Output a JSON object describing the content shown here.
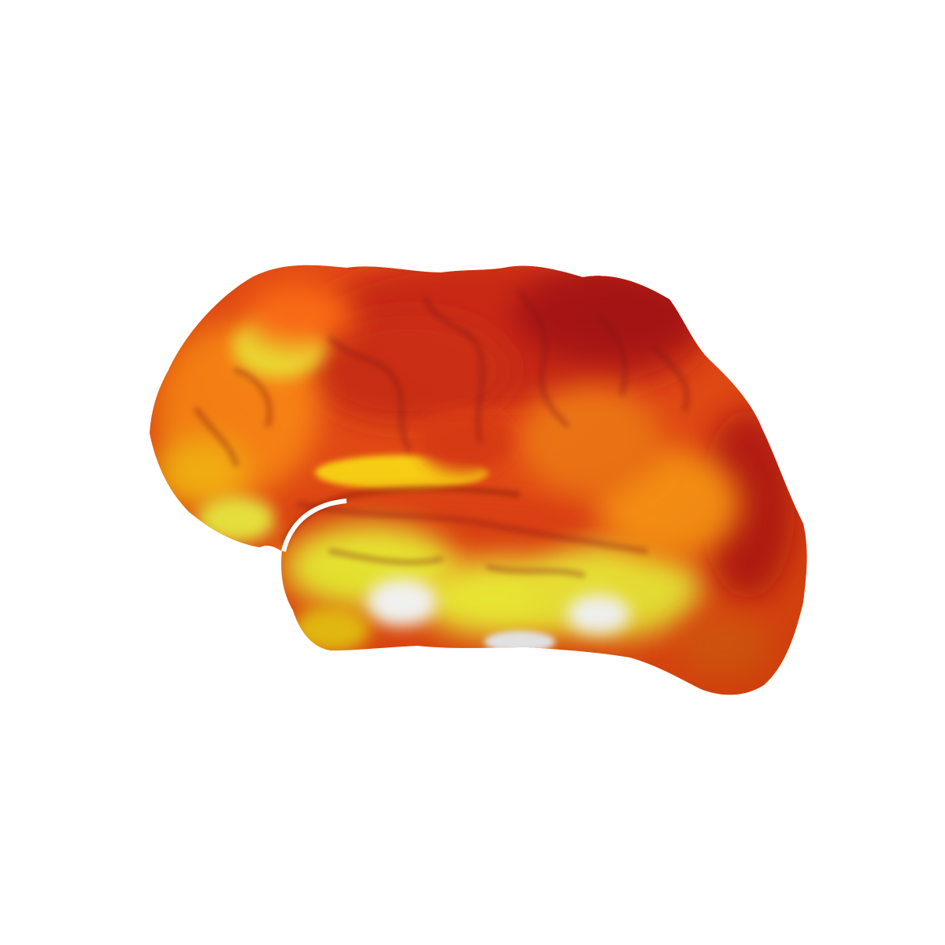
{
  "scene": {
    "background_color": "#ffffff",
    "object": "brain-surface-render",
    "view": "lateral",
    "colormap": {
      "name": "hot",
      "stops": [
        "#9e0000",
        "#c81400",
        "#e23c00",
        "#ff6a00",
        "#ffa000",
        "#ffd800",
        "#f4f428",
        "#ffffff"
      ]
    }
  }
}
